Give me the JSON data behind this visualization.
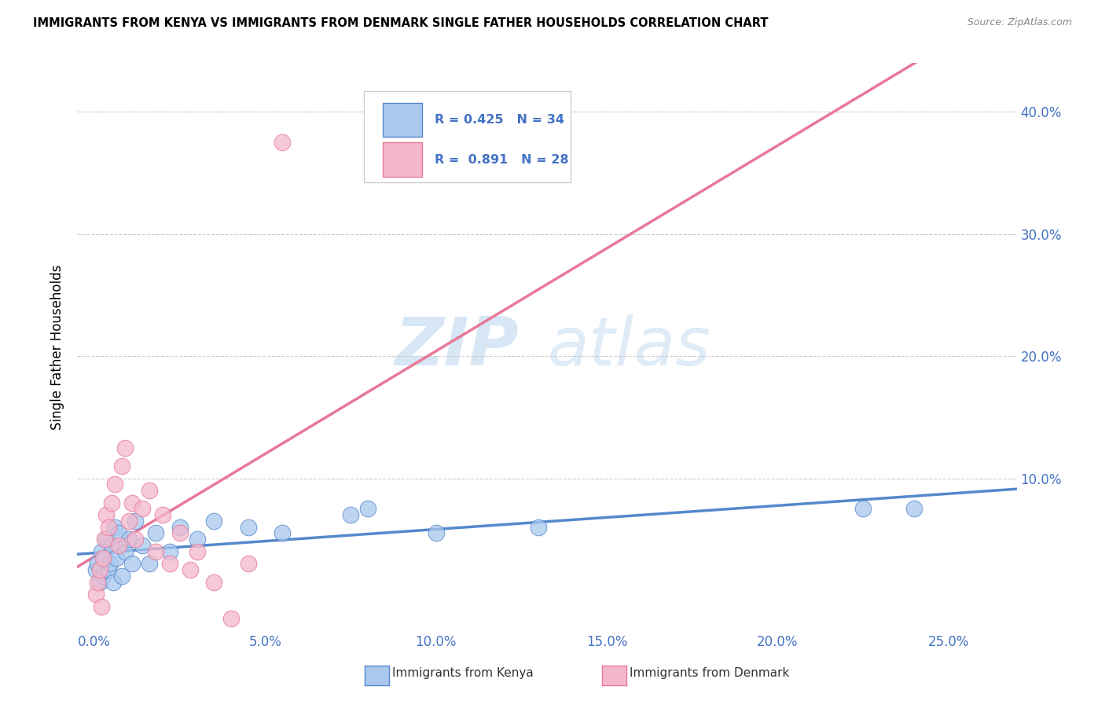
{
  "title": "IMMIGRANTS FROM KENYA VS IMMIGRANTS FROM DENMARK SINGLE FATHER HOUSEHOLDS CORRELATION CHART",
  "source": "Source: ZipAtlas.com",
  "ylabel": "Single Father Households",
  "x_tick_labels": [
    "0.0%",
    "5.0%",
    "10.0%",
    "15.0%",
    "20.0%",
    "25.0%"
  ],
  "x_tick_values": [
    0.0,
    5.0,
    10.0,
    15.0,
    20.0,
    25.0
  ],
  "y_tick_labels": [
    "10.0%",
    "20.0%",
    "30.0%",
    "40.0%"
  ],
  "y_tick_values": [
    10.0,
    20.0,
    30.0,
    40.0
  ],
  "xlim": [
    -0.5,
    27.0
  ],
  "ylim": [
    -2.5,
    44.0
  ],
  "kenya_color": "#a8c8ee",
  "denmark_color": "#f4b8cc",
  "kenya_line_color": "#5588cc",
  "denmark_line_color": "#e87898",
  "legend_R_kenya": "0.425",
  "legend_N_kenya": "34",
  "legend_R_denmark": "0.891",
  "legend_N_denmark": "28",
  "watermark_zip": "ZIP",
  "watermark_atlas": "atlas",
  "kenya_x": [
    0.05,
    0.1,
    0.15,
    0.2,
    0.25,
    0.3,
    0.35,
    0.4,
    0.45,
    0.5,
    0.55,
    0.6,
    0.65,
    0.7,
    0.8,
    0.9,
    1.0,
    1.1,
    1.2,
    1.4,
    1.6,
    1.8,
    2.2,
    2.5,
    3.0,
    3.5,
    4.5,
    5.5,
    7.5,
    8.0,
    10.0,
    13.0,
    22.5,
    24.0
  ],
  "kenya_y": [
    2.5,
    3.0,
    1.5,
    4.0,
    2.0,
    3.5,
    5.0,
    2.5,
    3.0,
    4.5,
    1.5,
    6.0,
    3.5,
    5.5,
    2.0,
    4.0,
    5.0,
    3.0,
    6.5,
    4.5,
    3.0,
    5.5,
    4.0,
    6.0,
    5.0,
    6.5,
    6.0,
    5.5,
    7.0,
    7.5,
    5.5,
    6.0,
    7.5,
    7.5
  ],
  "denmark_x": [
    0.05,
    0.1,
    0.15,
    0.2,
    0.25,
    0.3,
    0.35,
    0.4,
    0.5,
    0.6,
    0.7,
    0.8,
    0.9,
    1.0,
    1.1,
    1.2,
    1.4,
    1.6,
    1.8,
    2.0,
    2.2,
    2.5,
    2.8,
    3.0,
    3.5,
    4.0,
    4.5,
    5.5
  ],
  "denmark_y": [
    0.5,
    1.5,
    2.5,
    -0.5,
    3.5,
    5.0,
    7.0,
    6.0,
    8.0,
    9.5,
    4.5,
    11.0,
    12.5,
    6.5,
    8.0,
    5.0,
    7.5,
    9.0,
    4.0,
    7.0,
    3.0,
    5.5,
    2.5,
    4.0,
    1.5,
    -1.5,
    3.0,
    37.5
  ]
}
